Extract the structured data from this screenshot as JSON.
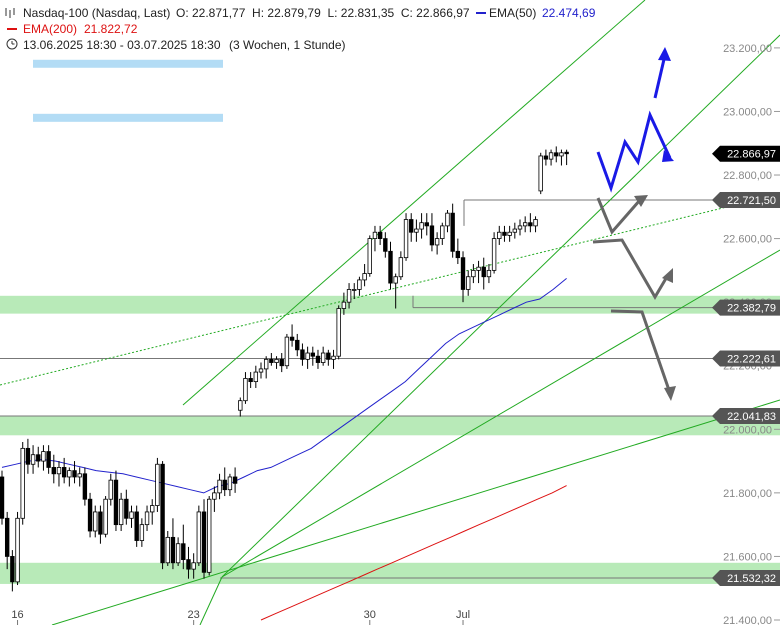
{
  "header": {
    "instrument": "Nasdaq-100 (Nasdaq, Last)",
    "ohlc": "O: 22.871,77  H: 22.879,79  L: 22.831,35  C: 22.866,97",
    "ema50_label": "EMA(50)",
    "ema50_value": "22.474,69",
    "ema200_label": "EMA(200)",
    "ema200_value": "21.822,72",
    "range": "13.06.2025 18:30 - 03.07.2025 18:30",
    "range_note": "(3 Wochen, 1 Stunde)"
  },
  "colors": {
    "ema50": "#2222cc",
    "ema200": "#dd1111",
    "trend": "#22aa22",
    "zone": "#b8eab8",
    "projection_blue": "#1a1ae6",
    "projection_gray": "#666666",
    "candle": "#000000",
    "blue_box": "#b3dcf5"
  },
  "chart_data": {
    "type": "candlestick",
    "y_axis": {
      "ylim": [
        21400,
        23250
      ],
      "ticks": [
        21400,
        21600,
        21800,
        22000,
        22200,
        22400,
        22600,
        22800,
        23000,
        23200
      ],
      "tick_labels": [
        "21.400,00",
        "21.600,00",
        "21.800,00",
        "22.000,00",
        "22.200,00",
        "22.400,00",
        "22.600,00",
        "22.800,00",
        "23.000,00",
        "23.200,00"
      ]
    },
    "x_axis": {
      "labels": [
        "16",
        "23",
        "30",
        "Jul"
      ],
      "label_bar_index": [
        3,
        37,
        71,
        89
      ]
    },
    "bar_count": 110,
    "candles": [
      [
        21850,
        21870,
        21700,
        21720
      ],
      [
        21720,
        21740,
        21560,
        21600
      ],
      [
        21600,
        21620,
        21490,
        21520
      ],
      [
        21520,
        21740,
        21510,
        21720
      ],
      [
        21720,
        21960,
        21700,
        21940
      ],
      [
        21940,
        21970,
        21860,
        21890
      ],
      [
        21890,
        21950,
        21860,
        21920
      ],
      [
        21920,
        21945,
        21880,
        21900
      ],
      [
        21900,
        21950,
        21870,
        21930
      ],
      [
        21930,
        21950,
        21860,
        21880
      ],
      [
        21880,
        21920,
        21830,
        21860
      ],
      [
        21860,
        21900,
        21820,
        21880
      ],
      [
        21880,
        21910,
        21830,
        21850
      ],
      [
        21850,
        21880,
        21820,
        21870
      ],
      [
        21870,
        21900,
        21830,
        21850
      ],
      [
        21850,
        21880,
        21820,
        21860
      ],
      [
        21860,
        21880,
        21760,
        21780
      ],
      [
        21780,
        21800,
        21660,
        21680
      ],
      [
        21680,
        21760,
        21660,
        21740
      ],
      [
        21740,
        21760,
        21640,
        21670
      ],
      [
        21670,
        21790,
        21660,
        21780
      ],
      [
        21780,
        21860,
        21760,
        21840
      ],
      [
        21840,
        21870,
        21680,
        21700
      ],
      [
        21700,
        21800,
        21680,
        21780
      ],
      [
        21780,
        21810,
        21700,
        21720
      ],
      [
        21720,
        21760,
        21690,
        21740
      ],
      [
        21740,
        21760,
        21630,
        21650
      ],
      [
        21650,
        21720,
        21630,
        21700
      ],
      [
        21700,
        21760,
        21680,
        21740
      ],
      [
        21740,
        21780,
        21700,
        21760
      ],
      [
        21760,
        21910,
        21740,
        21890
      ],
      [
        21890,
        21900,
        21560,
        21580
      ],
      [
        21580,
        21680,
        21570,
        21660
      ],
      [
        21660,
        21720,
        21560,
        21580
      ],
      [
        21580,
        21660,
        21570,
        21640
      ],
      [
        21640,
        21700,
        21560,
        21590
      ],
      [
        21590,
        21630,
        21530,
        21560
      ],
      [
        21560,
        21610,
        21530,
        21580
      ],
      [
        21580,
        21760,
        21570,
        21740
      ],
      [
        21740,
        21780,
        21530,
        21550
      ],
      [
        21550,
        21790,
        21540,
        21780
      ],
      [
        21780,
        21820,
        21740,
        21800
      ],
      [
        21800,
        21860,
        21780,
        21840
      ],
      [
        21840,
        21880,
        21790,
        21810
      ],
      [
        21810,
        21860,
        21790,
        21850
      ],
      [
        21850,
        21880,
        21800,
        21830
      ],
      [
        22060,
        22100,
        22040,
        22090
      ],
      [
        22090,
        22180,
        22080,
        22160
      ],
      [
        22160,
        22180,
        22130,
        22150
      ],
      [
        22150,
        22200,
        22130,
        22180
      ],
      [
        22180,
        22210,
        22160,
        22190
      ],
      [
        22190,
        22230,
        22160,
        22220
      ],
      [
        22220,
        22240,
        22200,
        22210
      ],
      [
        22210,
        22230,
        22190,
        22220
      ],
      [
        22220,
        22240,
        22180,
        22200
      ],
      [
        22200,
        22300,
        22190,
        22290
      ],
      [
        22290,
        22330,
        22260,
        22280
      ],
      [
        22280,
        22300,
        22230,
        22250
      ],
      [
        22250,
        22270,
        22200,
        22220
      ],
      [
        22220,
        22260,
        22190,
        22240
      ],
      [
        22240,
        22260,
        22200,
        22230
      ],
      [
        22230,
        22250,
        22190,
        22210
      ],
      [
        22210,
        22260,
        22200,
        22240
      ],
      [
        22240,
        22250,
        22200,
        22220
      ],
      [
        22220,
        22250,
        22190,
        22230
      ],
      [
        22230,
        22390,
        22220,
        22380
      ],
      [
        22380,
        22430,
        22360,
        22400
      ],
      [
        22400,
        22460,
        22380,
        22440
      ],
      [
        22440,
        22460,
        22410,
        22440
      ],
      [
        22440,
        22480,
        22420,
        22470
      ],
      [
        22470,
        22520,
        22450,
        22490
      ],
      [
        22490,
        22610,
        22480,
        22600
      ],
      [
        22600,
        22640,
        22560,
        22620
      ],
      [
        22620,
        22640,
        22580,
        22600
      ],
      [
        22600,
        22620,
        22540,
        22560
      ],
      [
        22560,
        22590,
        22440,
        22460
      ],
      [
        22460,
        22490,
        22380,
        22480
      ],
      [
        22480,
        22560,
        22470,
        22540
      ],
      [
        22540,
        22680,
        22530,
        22660
      ],
      [
        22660,
        22680,
        22590,
        22620
      ],
      [
        22620,
        22660,
        22590,
        22630
      ],
      [
        22630,
        22680,
        22600,
        22650
      ],
      [
        22650,
        22680,
        22610,
        22640
      ],
      [
        22640,
        22680,
        22560,
        22580
      ],
      [
        22580,
        22620,
        22550,
        22600
      ],
      [
        22600,
        22650,
        22580,
        22640
      ],
      [
        22640,
        22690,
        22620,
        22680
      ],
      [
        22680,
        22710,
        22540,
        22560
      ],
      [
        22560,
        22600,
        22520,
        22540
      ],
      [
        22540,
        22560,
        22400,
        22440
      ],
      [
        22440,
        22500,
        22420,
        22480
      ],
      [
        22480,
        22520,
        22460,
        22500
      ],
      [
        22500,
        22530,
        22460,
        22510
      ],
      [
        22510,
        22540,
        22440,
        22480
      ],
      [
        22480,
        22520,
        22460,
        22500
      ],
      [
        22500,
        22620,
        22490,
        22600
      ],
      [
        22600,
        22640,
        22580,
        22620
      ],
      [
        22620,
        22640,
        22590,
        22610
      ],
      [
        22610,
        22640,
        22590,
        22620
      ],
      [
        22620,
        22650,
        22600,
        22630
      ],
      [
        22630,
        22660,
        22610,
        22640
      ],
      [
        22640,
        22670,
        22620,
        22650
      ],
      [
        22650,
        22680,
        22620,
        22640
      ],
      [
        22640,
        22670,
        22620,
        22660
      ],
      [
        22750,
        22870,
        22740,
        22860
      ],
      [
        22860,
        22880,
        22830,
        22850
      ],
      [
        22850,
        22880,
        22830,
        22870
      ],
      [
        22870,
        22890,
        22840,
        22860
      ],
      [
        22860,
        22880,
        22830,
        22870
      ],
      [
        22871.77,
        22879.79,
        22831.35,
        22866.97
      ]
    ],
    "ema50": {
      "name": "EMA(50)",
      "start_bar": 0,
      "values": [
        21880,
        21890,
        21900,
        21905,
        21900,
        21890,
        21880,
        21870,
        21865,
        21860,
        21850,
        21840,
        21830,
        21820,
        21810,
        21800,
        21820,
        21830,
        21850,
        21870,
        21880,
        21900,
        21920,
        21940,
        21970,
        22000,
        22030,
        22060,
        22090,
        22120,
        22150,
        22190,
        22230,
        22270,
        22300,
        22320,
        22340,
        22360,
        22380,
        22400,
        22410,
        22440,
        22474.69
      ]
    },
    "ema200": {
      "name": "EMA(200)",
      "start_bar": 50,
      "values": [
        21400,
        21420,
        21440,
        21460,
        21480,
        21500,
        21520,
        21540,
        21560,
        21580,
        21600,
        21620,
        21640,
        21660,
        21680,
        21700,
        21720,
        21740,
        21760,
        21780,
        21800,
        21822.72
      ]
    },
    "price_labels": [
      {
        "value": 22866.97,
        "label": "22.866,97",
        "style": "current"
      },
      {
        "value": 22721.5,
        "label": "22.721,50",
        "style": "level"
      },
      {
        "value": 22382.79,
        "label": "22.382,79",
        "style": "level"
      },
      {
        "value": 22222.61,
        "label": "22.222,61",
        "style": "level"
      },
      {
        "value": 22041.83,
        "label": "22.041,83",
        "style": "level"
      },
      {
        "value": 21532.32,
        "label": "21.532,32",
        "style": "level"
      }
    ],
    "support_zones": [
      {
        "from": 22382.79,
        "to": 22420
      },
      {
        "from": 22000,
        "to": 22041.83
      },
      {
        "from": 21532.32,
        "to": 21580
      }
    ],
    "blue_boxes": [
      {
        "y": 23150
      },
      {
        "y": 22980
      }
    ]
  }
}
